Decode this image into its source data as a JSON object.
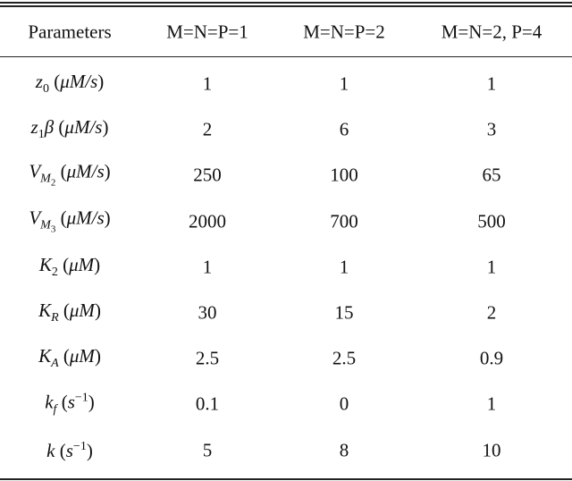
{
  "table": {
    "headers": [
      "Parameters",
      "M=N=P=1",
      "M=N=P=2",
      "M=N=2, P=4"
    ],
    "rows": [
      {
        "label": [
          {
            "text": "z",
            "style": "italic"
          },
          {
            "text": "0",
            "style": "sub"
          },
          {
            "text": " (",
            "style": "plain"
          },
          {
            "text": "μM/s",
            "style": "italic"
          },
          {
            "text": ")",
            "style": "plain"
          }
        ],
        "values": [
          1,
          1,
          1
        ]
      },
      {
        "label": [
          {
            "text": "z",
            "style": "italic"
          },
          {
            "text": "1",
            "style": "sub"
          },
          {
            "text": "β",
            "style": "italic"
          },
          {
            "text": " (",
            "style": "plain"
          },
          {
            "text": "μM/s",
            "style": "italic"
          },
          {
            "text": ")",
            "style": "plain"
          }
        ],
        "values": [
          2,
          6,
          3
        ]
      },
      {
        "label": [
          {
            "text": "V",
            "style": "italic"
          },
          {
            "text": "M",
            "style": "sub-italic"
          },
          {
            "text": "2",
            "style": "subsub"
          },
          {
            "text": " (",
            "style": "plain"
          },
          {
            "text": "μM/s",
            "style": "italic"
          },
          {
            "text": ")",
            "style": "plain"
          }
        ],
        "values": [
          250,
          100,
          65
        ]
      },
      {
        "label": [
          {
            "text": "V",
            "style": "italic"
          },
          {
            "text": "M",
            "style": "sub-italic"
          },
          {
            "text": "3",
            "style": "subsub"
          },
          {
            "text": " (",
            "style": "plain"
          },
          {
            "text": "μM/s",
            "style": "italic"
          },
          {
            "text": ")",
            "style": "plain"
          }
        ],
        "values": [
          2000,
          700,
          500
        ]
      },
      {
        "label": [
          {
            "text": "K",
            "style": "italic"
          },
          {
            "text": "2",
            "style": "sub"
          },
          {
            "text": " (",
            "style": "plain"
          },
          {
            "text": "μM",
            "style": "italic"
          },
          {
            "text": ")",
            "style": "plain"
          }
        ],
        "values": [
          1,
          1,
          1
        ]
      },
      {
        "label": [
          {
            "text": "K",
            "style": "italic"
          },
          {
            "text": "R",
            "style": "sub-italic"
          },
          {
            "text": " (",
            "style": "plain"
          },
          {
            "text": "μM",
            "style": "italic"
          },
          {
            "text": ")",
            "style": "plain"
          }
        ],
        "values": [
          30,
          15,
          2
        ]
      },
      {
        "label": [
          {
            "text": "K",
            "style": "italic"
          },
          {
            "text": "A",
            "style": "sub-italic"
          },
          {
            "text": " (",
            "style": "plain"
          },
          {
            "text": "μM",
            "style": "italic"
          },
          {
            "text": ")",
            "style": "plain"
          }
        ],
        "values": [
          2.5,
          2.5,
          0.9
        ]
      },
      {
        "label": [
          {
            "text": "k",
            "style": "italic"
          },
          {
            "text": "f",
            "style": "sub-italic"
          },
          {
            "text": " (",
            "style": "plain"
          },
          {
            "text": "s",
            "style": "italic"
          },
          {
            "text": "−1",
            "style": "sup"
          },
          {
            "text": ")",
            "style": "plain"
          }
        ],
        "values": [
          0.1,
          0,
          1
        ]
      },
      {
        "label": [
          {
            "text": "k",
            "style": "italic"
          },
          {
            "text": " (",
            "style": "plain"
          },
          {
            "text": "s",
            "style": "italic"
          },
          {
            "text": "−1",
            "style": "sup"
          },
          {
            "text": ")",
            "style": "plain"
          }
        ],
        "values": [
          5,
          8,
          10
        ]
      }
    ]
  }
}
